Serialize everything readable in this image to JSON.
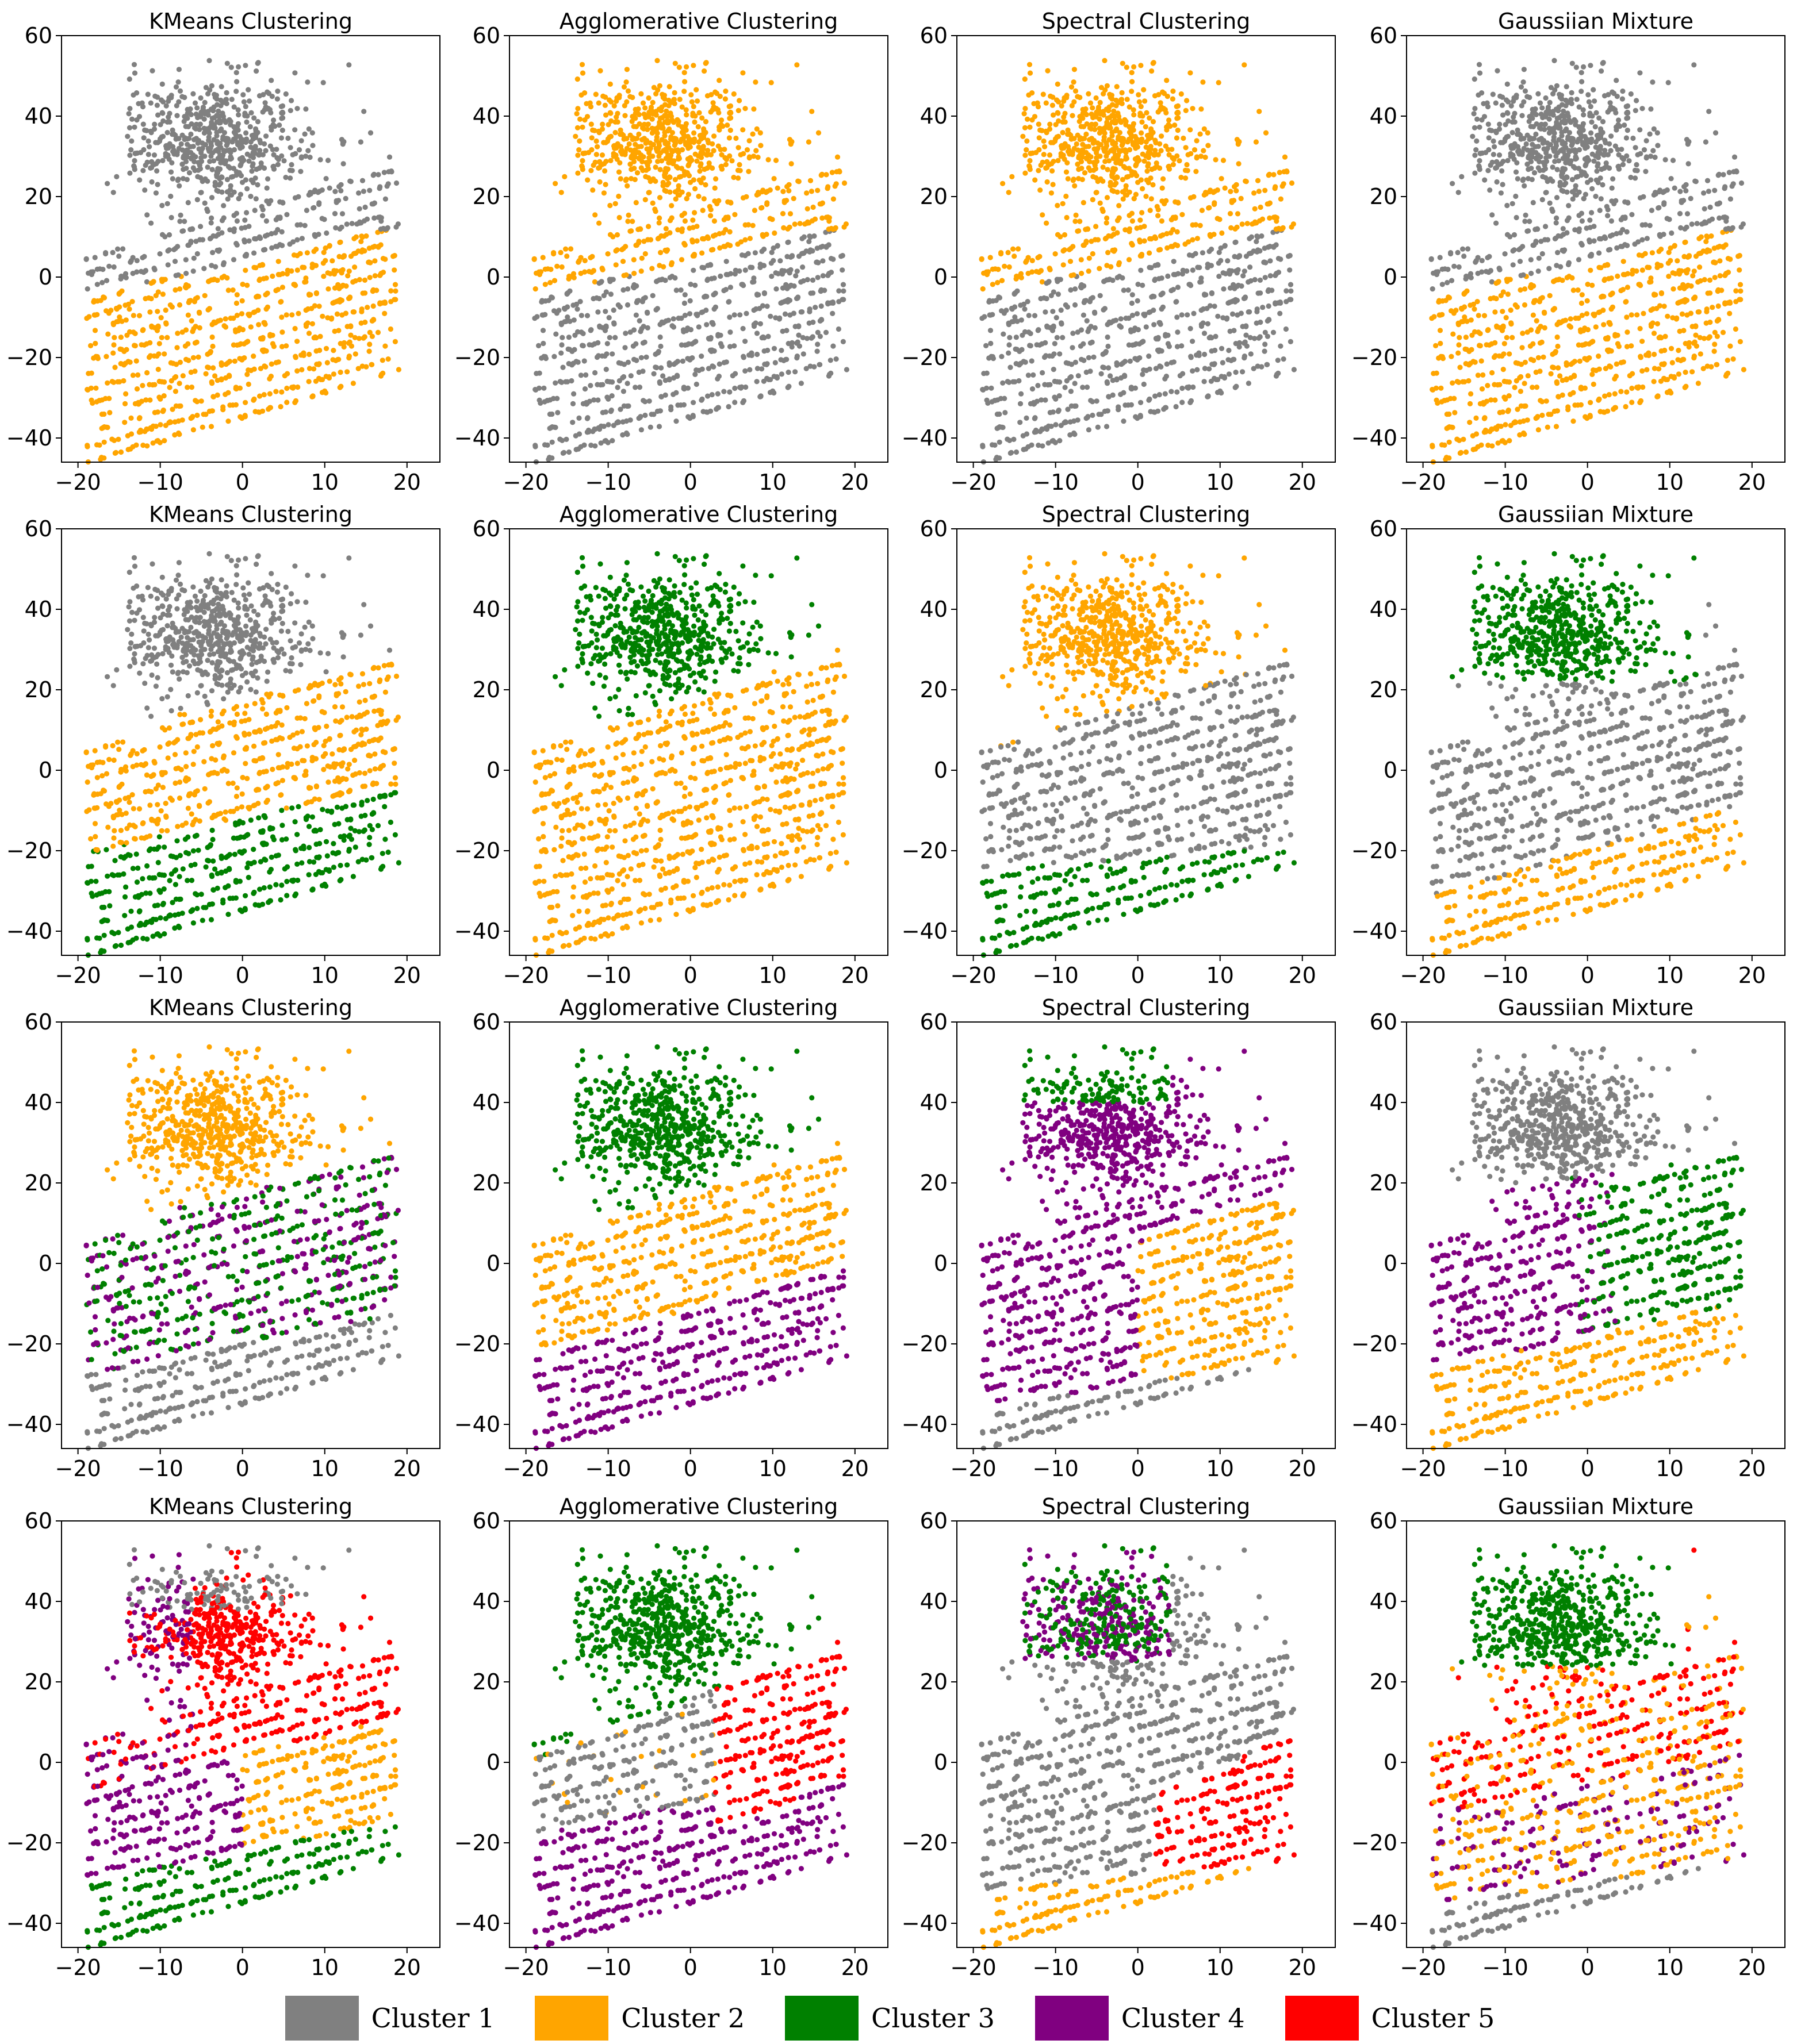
{
  "colors": {
    "cluster1": "#808080",
    "cluster2": "#FFA500",
    "cluster3": "#008000",
    "cluster4": "#800080",
    "cluster5": "#FF0000"
  },
  "legend": {
    "items": [
      {
        "label": "Cluster 1",
        "color": "#808080"
      },
      {
        "label": "Cluster 2",
        "color": "#FFA500"
      },
      {
        "label": "Cluster 3",
        "color": "#008000"
      },
      {
        "label": "Cluster 4",
        "color": "#800080"
      },
      {
        "label": "Cluster 5",
        "color": "#FF0000"
      }
    ]
  },
  "chart_data": [
    {
      "type": "scatter",
      "title": "KMeans Clustering",
      "xlim": [
        -22,
        24
      ],
      "ylim": [
        -46,
        60
      ],
      "xticks": [
        -20,
        -10,
        0,
        10,
        20
      ],
      "yticks": [
        -40,
        -20,
        0,
        20,
        40,
        60
      ],
      "n_clusters": 2,
      "colors": [
        "#808080",
        "#FFA500"
      ],
      "method": "km2"
    },
    {
      "type": "scatter",
      "title": "Agglomerative Clustering",
      "xlim": [
        -22,
        24
      ],
      "ylim": [
        -46,
        60
      ],
      "xticks": [
        -20,
        -10,
        0,
        10,
        20
      ],
      "yticks": [
        -40,
        -20,
        0,
        20,
        40,
        60
      ],
      "n_clusters": 2,
      "colors": [
        "#FFA500",
        "#808080"
      ],
      "method": "km2"
    },
    {
      "type": "scatter",
      "title": "Spectral Clustering",
      "xlim": [
        -22,
        24
      ],
      "ylim": [
        -46,
        60
      ],
      "xticks": [
        -20,
        -10,
        0,
        10,
        20
      ],
      "yticks": [
        -40,
        -20,
        0,
        20,
        40,
        60
      ],
      "n_clusters": 2,
      "colors": [
        "#FFA500",
        "#808080"
      ],
      "method": "km2"
    },
    {
      "type": "scatter",
      "title": "Gaussiian Mixture",
      "xlim": [
        -22,
        24
      ],
      "ylim": [
        -46,
        60
      ],
      "xticks": [
        -20,
        -10,
        0,
        10,
        20
      ],
      "yticks": [
        -40,
        -20,
        0,
        20,
        40,
        60
      ],
      "n_clusters": 2,
      "colors": [
        "#808080",
        "#FFA500"
      ],
      "method": "km2"
    },
    {
      "type": "scatter",
      "title": "KMeans Clustering",
      "xlim": [
        -22,
        24
      ],
      "ylim": [
        -46,
        60
      ],
      "xticks": [
        -20,
        -10,
        0,
        10,
        20
      ],
      "yticks": [
        -40,
        -20,
        0,
        20,
        40,
        60
      ],
      "n_clusters": 3,
      "colors": [
        "#808080",
        "#FFA500",
        "#008000"
      ],
      "method": "km3"
    },
    {
      "type": "scatter",
      "title": "Agglomerative Clustering",
      "xlim": [
        -22,
        24
      ],
      "ylim": [
        -46,
        60
      ],
      "xticks": [
        -20,
        -10,
        0,
        10,
        20
      ],
      "yticks": [
        -40,
        -20,
        0,
        20,
        40,
        60
      ],
      "n_clusters": 3,
      "colors": [
        "#008000",
        "#FFA500"
      ],
      "method": "ag3"
    },
    {
      "type": "scatter",
      "title": "Spectral Clustering",
      "xlim": [
        -22,
        24
      ],
      "ylim": [
        -46,
        60
      ],
      "xticks": [
        -20,
        -10,
        0,
        10,
        20
      ],
      "yticks": [
        -40,
        -20,
        0,
        20,
        40,
        60
      ],
      "n_clusters": 3,
      "colors": [
        "#FFA500",
        "#808080",
        "#008000"
      ],
      "method": "sp3"
    },
    {
      "type": "scatter",
      "title": "Gaussiian Mixture",
      "xlim": [
        -22,
        24
      ],
      "ylim": [
        -46,
        60
      ],
      "xticks": [
        -20,
        -10,
        0,
        10,
        20
      ],
      "yticks": [
        -40,
        -20,
        0,
        20,
        40,
        60
      ],
      "n_clusters": 3,
      "colors": [
        "#008000",
        "#808080",
        "#FFA500"
      ],
      "method": "gm3"
    },
    {
      "type": "scatter",
      "title": "KMeans Clustering",
      "xlim": [
        -22,
        24
      ],
      "ylim": [
        -46,
        60
      ],
      "xticks": [
        -20,
        -10,
        0,
        10,
        20
      ],
      "yticks": [
        -40,
        -20,
        0,
        20,
        40,
        60
      ],
      "n_clusters": 4,
      "colors": [
        "#FFA500",
        "#008000",
        "#800080",
        "#808080"
      ],
      "method": "km4"
    },
    {
      "type": "scatter",
      "title": "Agglomerative Clustering",
      "xlim": [
        -22,
        24
      ],
      "ylim": [
        -46,
        60
      ],
      "xticks": [
        -20,
        -10,
        0,
        10,
        20
      ],
      "yticks": [
        -40,
        -20,
        0,
        20,
        40,
        60
      ],
      "n_clusters": 4,
      "colors": [
        "#008000",
        "#FFA500",
        "#800080"
      ],
      "method": "ag4"
    },
    {
      "type": "scatter",
      "title": "Spectral Clustering",
      "xlim": [
        -22,
        24
      ],
      "ylim": [
        -46,
        60
      ],
      "xticks": [
        -20,
        -10,
        0,
        10,
        20
      ],
      "yticks": [
        -40,
        -20,
        0,
        20,
        40,
        60
      ],
      "n_clusters": 4,
      "colors": [
        "#008000",
        "#800080",
        "#FFA500",
        "#808080"
      ],
      "method": "sp4"
    },
    {
      "type": "scatter",
      "title": "Gaussiian Mixture",
      "xlim": [
        -22,
        24
      ],
      "ylim": [
        -46,
        60
      ],
      "xticks": [
        -20,
        -10,
        0,
        10,
        20
      ],
      "yticks": [
        -40,
        -20,
        0,
        20,
        40,
        60
      ],
      "n_clusters": 4,
      "colors": [
        "#808080",
        "#800080",
        "#008000",
        "#FFA500"
      ],
      "method": "gm4"
    },
    {
      "type": "scatter",
      "title": "KMeans Clustering",
      "xlim": [
        -22,
        24
      ],
      "ylim": [
        -46,
        60
      ],
      "xticks": [
        -20,
        -10,
        0,
        10,
        20
      ],
      "yticks": [
        -40,
        -20,
        0,
        20,
        40,
        60
      ],
      "n_clusters": 5,
      "colors": [
        "#808080",
        "#FF0000",
        "#800080",
        "#FFA500",
        "#008000"
      ],
      "method": "km5"
    },
    {
      "type": "scatter",
      "title": "Agglomerative Clustering",
      "xlim": [
        -22,
        24
      ],
      "ylim": [
        -46,
        60
      ],
      "xticks": [
        -20,
        -10,
        0,
        10,
        20
      ],
      "yticks": [
        -40,
        -20,
        0,
        20,
        40,
        60
      ],
      "n_clusters": 5,
      "colors": [
        "#008000",
        "#808080",
        "#800080",
        "#FF0000",
        "#FFA500"
      ],
      "method": "ag5"
    },
    {
      "type": "scatter",
      "title": "Spectral Clustering",
      "xlim": [
        -22,
        24
      ],
      "ylim": [
        -46,
        60
      ],
      "xticks": [
        -20,
        -10,
        0,
        10,
        20
      ],
      "yticks": [
        -40,
        -20,
        0,
        20,
        40,
        60
      ],
      "n_clusters": 5,
      "colors": [
        "#008000",
        "#800080",
        "#808080",
        "#FF0000",
        "#FFA500"
      ],
      "method": "sp5"
    },
    {
      "type": "scatter",
      "title": "Gaussiian Mixture",
      "xlim": [
        -22,
        24
      ],
      "ylim": [
        -46,
        60
      ],
      "xticks": [
        -20,
        -10,
        0,
        10,
        20
      ],
      "yticks": [
        -40,
        -20,
        0,
        20,
        40,
        60
      ],
      "n_clusters": 5,
      "colors": [
        "#008000",
        "#FF0000",
        "#FFA500",
        "#800080",
        "#808080"
      ],
      "method": "gm5"
    }
  ]
}
